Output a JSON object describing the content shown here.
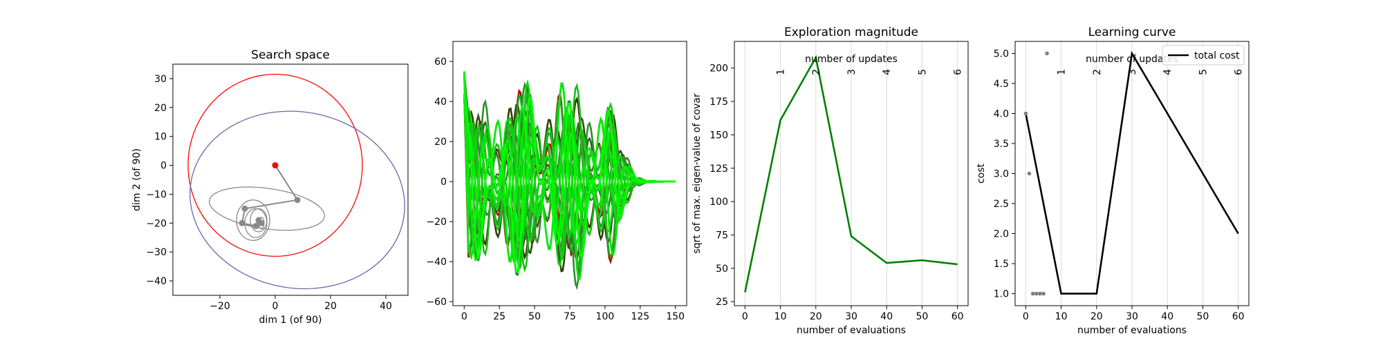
{
  "chart_data": [
    {
      "type": "line",
      "title": "Search space",
      "xlabel": "dim 1 (of 90)",
      "ylabel": "dim 2 (of 90)",
      "xlim": [
        -37,
        48
      ],
      "ylim": [
        -45,
        35
      ],
      "xticks": [
        -20,
        0,
        20,
        40
      ],
      "yticks": [
        -40,
        -30,
        -20,
        -10,
        0,
        10,
        20,
        30
      ],
      "colors": {
        "initial": "#ff0000",
        "final": "#6666aa",
        "path": "#888888"
      },
      "mean_path": [
        {
          "x": 0,
          "y": 0
        },
        {
          "x": 8,
          "y": -12
        },
        {
          "x": -11,
          "y": -15
        },
        {
          "x": -12,
          "y": -20
        },
        {
          "x": -7,
          "y": -21
        },
        {
          "x": -6,
          "y": -19
        },
        {
          "x": -5,
          "y": -20
        }
      ],
      "ellipses": [
        {
          "role": "initial",
          "cx": 0,
          "cy": 0,
          "rx": 31.5,
          "ry": 31.5
        },
        {
          "role": "final",
          "cx": 8,
          "cy": -12,
          "rx": 39,
          "ry": 30.5,
          "angle": -10
        },
        {
          "role": "path",
          "cx": -3,
          "cy": -15,
          "rx": 21,
          "ry": 7,
          "angle": -8
        },
        {
          "role": "path",
          "cx": -8,
          "cy": -19,
          "rx": 6,
          "ry": 7
        },
        {
          "role": "path",
          "cx": -7,
          "cy": -20,
          "rx": 4,
          "ry": 5
        },
        {
          "role": "path",
          "cx": -6,
          "cy": -19,
          "rx": 3,
          "ry": 4
        },
        {
          "role": "path",
          "cx": -5,
          "cy": -20,
          "rx": 1,
          "ry": 2
        }
      ]
    },
    {
      "type": "line",
      "title": "",
      "xlabel": "",
      "ylabel": "",
      "xlim": [
        -8,
        158
      ],
      "ylim": [
        -62,
        70
      ],
      "xticks": [
        0,
        25,
        50,
        75,
        100,
        125,
        150
      ],
      "yticks": [
        -60,
        -40,
        -20,
        0,
        20,
        40,
        60
      ],
      "colors": {
        "start": "#cc0000",
        "dark": "#333300",
        "mid": "#2e8b2e",
        "end": "#00ff00"
      }
    },
    {
      "type": "line",
      "title": "Exploration magnitude",
      "xlabel": "number of evaluations",
      "ylabel": "sqrt of max. eigen-value of covar",
      "top_axis_label": "number of updates",
      "xlim": [
        -3,
        63
      ],
      "ylim": [
        22,
        220
      ],
      "xticks": [
        0,
        10,
        20,
        30,
        40,
        50,
        60
      ],
      "yticks": [
        25,
        50,
        75,
        100,
        125,
        150,
        175,
        200
      ],
      "update_ticks": [
        1,
        2,
        3,
        4,
        5,
        6
      ],
      "color": "#008000",
      "x": [
        0,
        10,
        20,
        30,
        40,
        50,
        60
      ],
      "y": [
        32,
        161,
        208,
        74,
        54,
        56,
        53
      ]
    },
    {
      "type": "line",
      "title": "Learning curve",
      "xlabel": "number of evaluations",
      "ylabel": "cost",
      "top_axis_label": "number of updates",
      "xlim": [
        -3,
        63
      ],
      "ylim": [
        0.8,
        5.2
      ],
      "xticks": [
        0,
        10,
        20,
        30,
        40,
        50,
        60
      ],
      "yticks": [
        1.0,
        1.5,
        2.0,
        2.5,
        3.0,
        3.5,
        4.0,
        4.5,
        5.0
      ],
      "update_ticks": [
        1,
        2,
        3,
        4,
        5,
        6
      ],
      "legend": "top-right",
      "series": [
        {
          "name": "total cost",
          "color": "#000000",
          "x": [
            0,
            10,
            20,
            30,
            60
          ],
          "y": [
            4.0,
            1.0,
            1.0,
            5.0,
            2.0
          ]
        }
      ],
      "scatter": {
        "color": "#808080",
        "x": [
          0,
          1,
          2,
          3,
          4,
          5,
          6
        ],
        "y": [
          4.0,
          3.0,
          1.0,
          1.0,
          1.0,
          1.0,
          5.0
        ]
      }
    }
  ]
}
